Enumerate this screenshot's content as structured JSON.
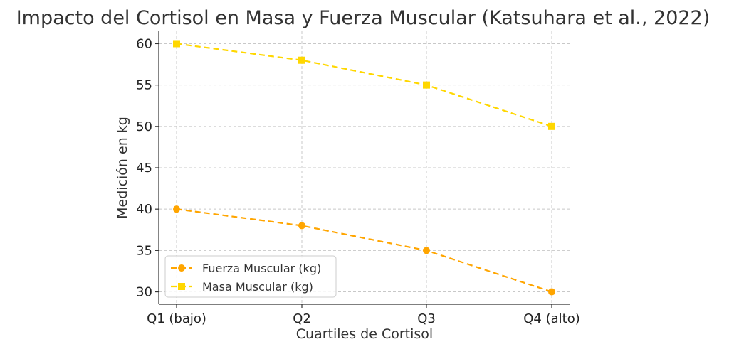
{
  "chart_data": {
    "type": "line",
    "title": "Impacto del Cortisol en Masa y Fuerza Muscular (Katsuhara et al., 2022)",
    "xlabel": "Cuartiles de Cortisol",
    "ylabel": "Medición en kg",
    "categories": [
      "Q1 (bajo)",
      "Q2",
      "Q3",
      "Q4 (alto)"
    ],
    "ylim": [
      28.5,
      61.5
    ],
    "yticks": [
      30,
      35,
      40,
      45,
      50,
      55,
      60
    ],
    "grid": true,
    "legend_position": "lower-left",
    "series": [
      {
        "name": "Fuerza Muscular (kg)",
        "values": [
          40,
          38,
          35,
          30
        ],
        "color": "#FFA500",
        "marker": "circle",
        "line_style": "dashed"
      },
      {
        "name": "Masa Muscular (kg)",
        "values": [
          60,
          58,
          55,
          50
        ],
        "color": "#FFD700",
        "marker": "square",
        "line_style": "dashed"
      }
    ]
  }
}
